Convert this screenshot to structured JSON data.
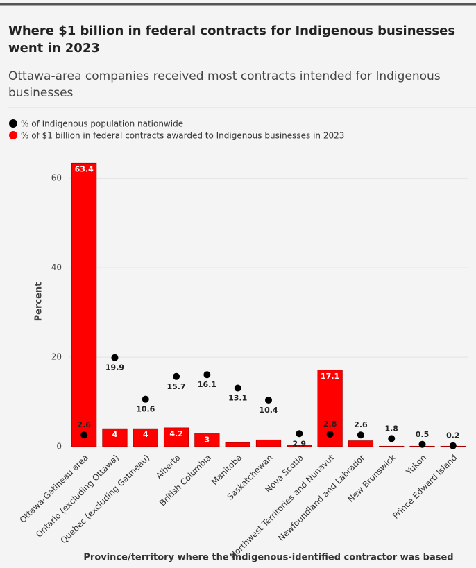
{
  "chart_data": {
    "type": "bar",
    "title": "Where $1 billion in federal contracts for Indigenous businesses went in 2023",
    "subtitle": "Ottawa-area companies received most contracts intended for Indigenous businesses",
    "y_label": "Percent",
    "x_label": "Province/territory where the Indigenous-identified contractor was based",
    "categories": [
      "Ottawa-Gatineau area",
      "Ontario (excluding Ottawa)",
      "Quebec (excluding Gatineau)",
      "Alberta",
      "British Columbia",
      "Manitoba",
      "Saskatchewan",
      "Nova Scotia",
      "Northwest Territories and Nunavut",
      "Newfoundland and Labrador",
      "New Brunswick",
      "Yukon",
      "Prince Edward Island"
    ],
    "series": [
      {
        "name": "% of Indigenous population nationwide",
        "color": "#000000",
        "mark": "dot",
        "values": [
          2.6,
          19.9,
          10.6,
          15.7,
          16.1,
          13.1,
          10.4,
          2.9,
          2.8,
          2.6,
          1.8,
          0.5,
          0.2
        ]
      },
      {
        "name": "% of $1 billion in federal contracts awarded to Indigenous businesses in 2023",
        "color": "#ff0000",
        "mark": "bar",
        "values": [
          63.4,
          4,
          4,
          4.2,
          3,
          0.9,
          1.5,
          0.3,
          17.1,
          1.3,
          0.1,
          0.1,
          0.1
        ],
        "value_labels": [
          63.4,
          4,
          4,
          4.2,
          3,
          null,
          null,
          null,
          17.1,
          null,
          null,
          null,
          null
        ]
      }
    ],
    "ylim": [
      0,
      65
    ],
    "yticks": [
      0,
      20,
      40,
      60
    ],
    "grid": true
  }
}
